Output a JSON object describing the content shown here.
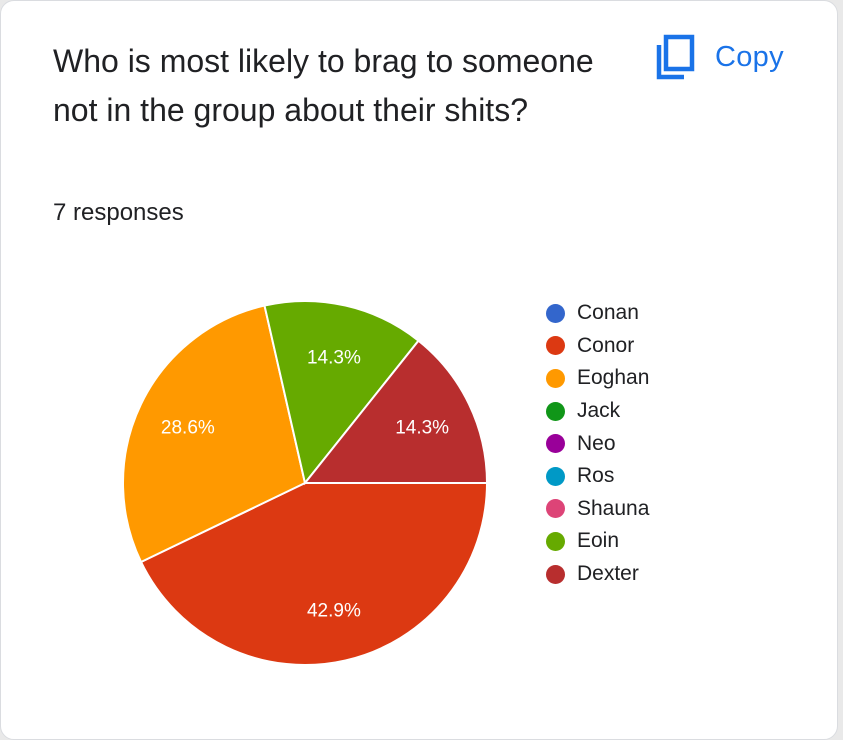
{
  "card": {
    "title": "Who is most likely to brag to someone not in the group about their shits?",
    "copy_label": "Copy",
    "copy_icon": "copy-icon",
    "responses": "7 responses"
  },
  "colors": {
    "accent": "#1a73e8"
  },
  "chart_data": {
    "type": "pie",
    "legend_position": "right",
    "slices": [
      {
        "label": "Conan",
        "value": 0,
        "display": "",
        "color": "#3366cc"
      },
      {
        "label": "Conor",
        "value": 42.9,
        "display": "42.9%",
        "color": "#dc3912"
      },
      {
        "label": "Eoghan",
        "value": 28.6,
        "display": "28.6%",
        "color": "#ff9900"
      },
      {
        "label": "Jack",
        "value": 0,
        "display": "",
        "color": "#109618"
      },
      {
        "label": "Neo",
        "value": 0,
        "display": "",
        "color": "#990099"
      },
      {
        "label": "Ros",
        "value": 0,
        "display": "",
        "color": "#0099c6"
      },
      {
        "label": "Shauna",
        "value": 0,
        "display": "",
        "color": "#dd4477"
      },
      {
        "label": "Eoin",
        "value": 14.3,
        "display": "14.3%",
        "color": "#66aa00"
      },
      {
        "label": "Dexter",
        "value": 14.3,
        "display": "14.3%",
        "color": "#b82e2e"
      }
    ]
  }
}
